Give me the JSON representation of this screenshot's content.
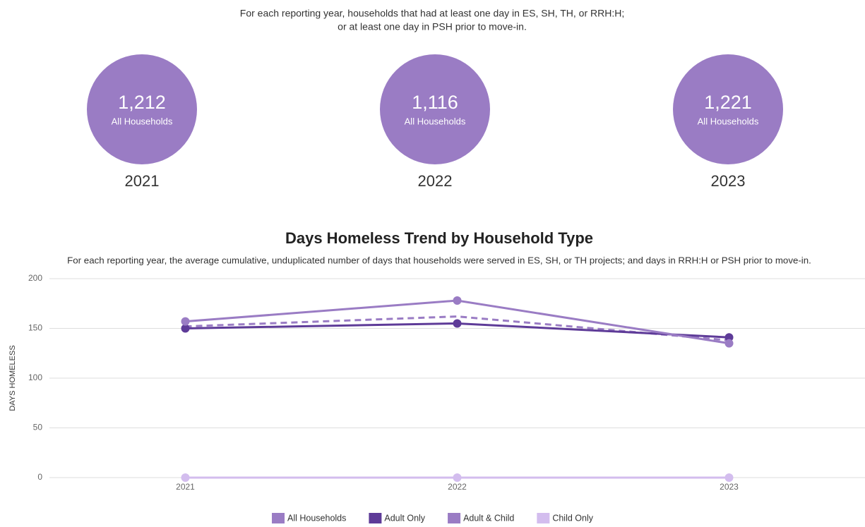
{
  "summary": {
    "description": [
      "For each reporting year, households that had at least one day in ES, SH, TH, or RRH:H;",
      "or at least one day in PSH prior to move-in."
    ],
    "cards": [
      {
        "value": "1,212",
        "label": "All Households",
        "year": "2021"
      },
      {
        "value": "1,116",
        "label": "All Households",
        "year": "2022"
      },
      {
        "value": "1,221",
        "label": "All Households",
        "year": "2023"
      }
    ]
  },
  "chart_data": {
    "type": "line",
    "title": "Days Homeless Trend by Household Type",
    "subtitle": "For each reporting year, the average cumulative, unduplicated number of days that households were served in ES, SH, or TH projects; and days in RRH:H or PSH prior to move-in.",
    "y_label": "DAYS HOMELESS",
    "categories": [
      "2021",
      "2022",
      "2023"
    ],
    "series": [
      {
        "name": "All Households",
        "color": "#9a7cc4",
        "dashed": true,
        "values": [
          152,
          162,
          138
        ]
      },
      {
        "name": "Adult Only",
        "color": "#5e3b98",
        "values": [
          150,
          155,
          141
        ]
      },
      {
        "name": "Adult & Child",
        "color": "#9a7cc4",
        "values": [
          157,
          178,
          135
        ]
      },
      {
        "name": "Child Only",
        "color": "#d3bdee",
        "values": [
          0,
          0,
          0
        ]
      }
    ],
    "ylim": [
      0,
      200
    ],
    "yticks": [
      0,
      50,
      100,
      150,
      200
    ],
    "grid": true,
    "legend": "bottom"
  }
}
